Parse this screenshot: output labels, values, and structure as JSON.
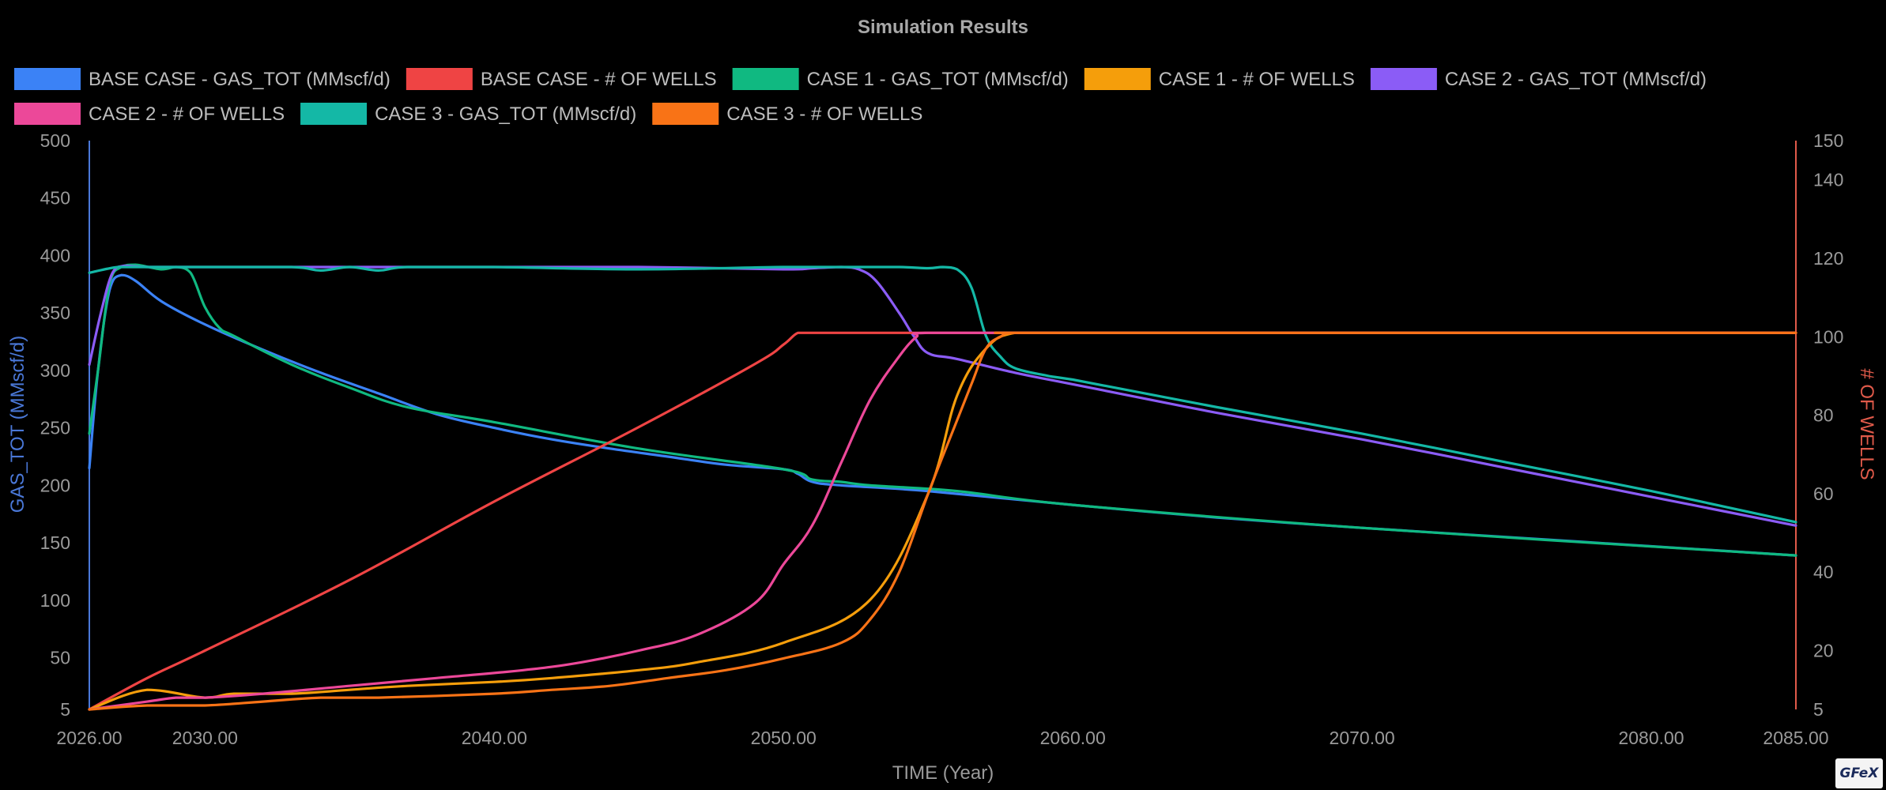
{
  "chart_data": {
    "type": "line",
    "title": "Simulation Results",
    "xlabel": "TIME (Year)",
    "ylabel_left": "GAS_TOT (MMscf/d)",
    "ylabel_right": "# OF WELLS",
    "xlim": [
      2026,
      2085
    ],
    "ylim_left": [
      5,
      500
    ],
    "ylim_right": [
      5,
      150
    ],
    "x_ticks": [
      "2026.00",
      "2030.00",
      "2040.00",
      "2050.00",
      "2060.00",
      "2070.00",
      "2080.00",
      "2085.00"
    ],
    "x_tick_values": [
      2026,
      2030,
      2040,
      2050,
      2060,
      2070,
      2080,
      2085
    ],
    "y_left_ticks": [
      "5",
      "50",
      "100",
      "150",
      "200",
      "250",
      "300",
      "350",
      "400",
      "450",
      "500"
    ],
    "y_left_tick_values": [
      5,
      50,
      100,
      150,
      200,
      250,
      300,
      350,
      400,
      450,
      500
    ],
    "y_right_ticks": [
      "5",
      "20",
      "40",
      "60",
      "80",
      "100",
      "120",
      "140",
      "150"
    ],
    "y_right_tick_values": [
      5,
      20,
      40,
      60,
      80,
      100,
      120,
      140,
      150
    ],
    "grid": false,
    "legend_position": "top",
    "left_axis_color": "#4a78d8",
    "right_axis_color": "#e05a4a",
    "series": [
      {
        "name": "BASE CASE - GAS_TOT (MMscf/d)",
        "axis": "left",
        "color": "#3b82f6",
        "points": [
          [
            2026,
            215
          ],
          [
            2026.3,
            300
          ],
          [
            2026.7,
            370
          ],
          [
            2027.1,
            383
          ],
          [
            2027.6,
            378
          ],
          [
            2028.5,
            360
          ],
          [
            2030,
            340
          ],
          [
            2032,
            318
          ],
          [
            2034,
            298
          ],
          [
            2036,
            280
          ],
          [
            2038,
            262
          ],
          [
            2040,
            250
          ],
          [
            2042,
            240
          ],
          [
            2044,
            232
          ],
          [
            2046,
            225
          ],
          [
            2048,
            218
          ],
          [
            2050,
            214
          ],
          [
            2050.5,
            210
          ],
          [
            2051,
            203
          ],
          [
            2052,
            200
          ],
          [
            2055,
            195
          ],
          [
            2060,
            183
          ],
          [
            2065,
            172
          ],
          [
            2070,
            163
          ],
          [
            2075,
            155
          ],
          [
            2080,
            147
          ],
          [
            2085,
            139
          ]
        ]
      },
      {
        "name": "BASE CASE - # OF WELLS",
        "axis": "right",
        "color": "#ef4444",
        "points": [
          [
            2026,
            5
          ],
          [
            2028,
            13
          ],
          [
            2030,
            20
          ],
          [
            2035,
            38
          ],
          [
            2040,
            58
          ],
          [
            2045,
            77
          ],
          [
            2049,
            93
          ],
          [
            2050,
            98
          ],
          [
            2050.5,
            101
          ],
          [
            2051,
            101
          ],
          [
            2055,
            101
          ],
          [
            2060,
            101
          ],
          [
            2070,
            101
          ],
          [
            2085,
            101
          ]
        ]
      },
      {
        "name": "CASE 1 - GAS_TOT (MMscf/d)",
        "axis": "left",
        "color": "#10b981",
        "points": [
          [
            2026,
            245
          ],
          [
            2026.3,
            300
          ],
          [
            2026.7,
            375
          ],
          [
            2027.1,
            390
          ],
          [
            2027.6,
            392
          ],
          [
            2028.5,
            388
          ],
          [
            2029,
            390
          ],
          [
            2029.5,
            385
          ],
          [
            2030,
            355
          ],
          [
            2030.5,
            337
          ],
          [
            2031,
            330
          ],
          [
            2033,
            305
          ],
          [
            2035,
            285
          ],
          [
            2037,
            268
          ],
          [
            2040,
            255
          ],
          [
            2045,
            232
          ],
          [
            2050,
            214
          ],
          [
            2051,
            205
          ],
          [
            2052,
            203
          ],
          [
            2053,
            200
          ],
          [
            2056,
            195
          ],
          [
            2060,
            183
          ],
          [
            2070,
            163
          ],
          [
            2085,
            139
          ]
        ]
      },
      {
        "name": "CASE 1 - # OF WELLS",
        "axis": "right",
        "color": "#f59e0b",
        "points": [
          [
            2026,
            5
          ],
          [
            2028,
            10
          ],
          [
            2030,
            8
          ],
          [
            2031,
            9
          ],
          [
            2033,
            9
          ],
          [
            2035,
            10
          ],
          [
            2037,
            11
          ],
          [
            2040,
            12
          ],
          [
            2042,
            13
          ],
          [
            2045,
            15
          ],
          [
            2047,
            17
          ],
          [
            2050,
            22
          ],
          [
            2053,
            33
          ],
          [
            2055,
            60
          ],
          [
            2056,
            85
          ],
          [
            2057,
            97
          ],
          [
            2058,
            101
          ],
          [
            2060,
            101
          ],
          [
            2085,
            101
          ]
        ]
      },
      {
        "name": "CASE 2 - GAS_TOT (MMscf/d)",
        "axis": "left",
        "color": "#8b5cf6",
        "points": [
          [
            2026,
            305
          ],
          [
            2026.4,
            350
          ],
          [
            2026.8,
            385
          ],
          [
            2027.2,
            391
          ],
          [
            2028,
            390
          ],
          [
            2030,
            390
          ],
          [
            2035,
            390
          ],
          [
            2040,
            390
          ],
          [
            2045,
            390
          ],
          [
            2050,
            388
          ],
          [
            2051,
            389
          ],
          [
            2052,
            390
          ],
          [
            2052.6,
            388
          ],
          [
            2053.2,
            378
          ],
          [
            2054,
            350
          ],
          [
            2054.5,
            330
          ],
          [
            2055,
            315
          ],
          [
            2056,
            310
          ],
          [
            2058,
            298
          ],
          [
            2060,
            288
          ],
          [
            2065,
            263
          ],
          [
            2070,
            240
          ],
          [
            2075,
            215
          ],
          [
            2080,
            190
          ],
          [
            2085,
            165
          ]
        ]
      },
      {
        "name": "CASE 2 - # OF WELLS",
        "axis": "right",
        "color": "#ec4899",
        "points": [
          [
            2026,
            5
          ],
          [
            2028,
            7
          ],
          [
            2029,
            8
          ],
          [
            2030,
            8
          ],
          [
            2032,
            9
          ],
          [
            2035,
            11
          ],
          [
            2038,
            13
          ],
          [
            2041,
            15
          ],
          [
            2043,
            17
          ],
          [
            2045,
            20
          ],
          [
            2047,
            24
          ],
          [
            2049,
            32
          ],
          [
            2050,
            42
          ],
          [
            2051,
            52
          ],
          [
            2052,
            68
          ],
          [
            2053,
            84
          ],
          [
            2054,
            95
          ],
          [
            2054.6,
            100
          ],
          [
            2055,
            101
          ],
          [
            2060,
            101
          ],
          [
            2085,
            101
          ]
        ]
      },
      {
        "name": "CASE 3 - GAS_TOT (MMscf/d)",
        "axis": "left",
        "color": "#14b8a6",
        "points": [
          [
            2026,
            385
          ],
          [
            2027,
            390
          ],
          [
            2028,
            390
          ],
          [
            2030,
            390
          ],
          [
            2033,
            390
          ],
          [
            2034,
            387
          ],
          [
            2035,
            390
          ],
          [
            2036,
            387
          ],
          [
            2037,
            390
          ],
          [
            2040,
            390
          ],
          [
            2045,
            388
          ],
          [
            2050,
            390
          ],
          [
            2052,
            390
          ],
          [
            2054,
            390
          ],
          [
            2055,
            389
          ],
          [
            2055.5,
            390
          ],
          [
            2056,
            388
          ],
          [
            2056.5,
            372
          ],
          [
            2057,
            330
          ],
          [
            2057.5,
            312
          ],
          [
            2058,
            302
          ],
          [
            2059,
            296
          ],
          [
            2060,
            292
          ],
          [
            2065,
            268
          ],
          [
            2070,
            245
          ],
          [
            2075,
            220
          ],
          [
            2080,
            195
          ],
          [
            2085,
            168
          ]
        ]
      },
      {
        "name": "CASE 3 - # OF WELLS",
        "axis": "right",
        "color": "#f97316",
        "points": [
          [
            2026,
            5
          ],
          [
            2028,
            6
          ],
          [
            2030,
            6
          ],
          [
            2032,
            7
          ],
          [
            2034,
            8
          ],
          [
            2036,
            8
          ],
          [
            2040,
            9
          ],
          [
            2042,
            10
          ],
          [
            2044,
            11
          ],
          [
            2046,
            13
          ],
          [
            2048,
            15
          ],
          [
            2050,
            18
          ],
          [
            2052,
            22
          ],
          [
            2053,
            28
          ],
          [
            2054,
            40
          ],
          [
            2055,
            60
          ],
          [
            2055.8,
            75
          ],
          [
            2056.5,
            88
          ],
          [
            2057,
            97
          ],
          [
            2057.5,
            100
          ],
          [
            2058,
            101
          ],
          [
            2060,
            101
          ],
          [
            2085,
            101
          ]
        ]
      }
    ]
  },
  "logo": {
    "text": "GFeX"
  }
}
